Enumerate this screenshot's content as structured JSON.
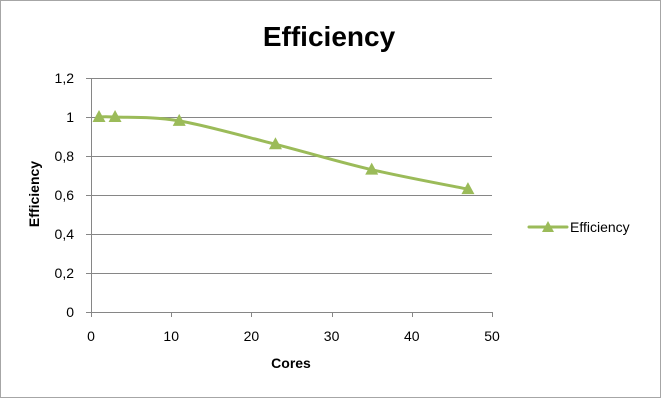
{
  "chart_data": {
    "type": "line",
    "title": "Efficiency",
    "xlabel": "Cores",
    "ylabel": "Efficiency",
    "xlim": [
      0,
      50
    ],
    "ylim": [
      0,
      1.2
    ],
    "x_ticks": [
      0,
      10,
      20,
      30,
      40,
      50
    ],
    "x_tick_labels": [
      "0",
      "10",
      "20",
      "30",
      "40",
      "50"
    ],
    "y_ticks": [
      0,
      0.2,
      0.4,
      0.6,
      0.8,
      1,
      1.2
    ],
    "y_tick_labels": [
      "0",
      "0,2",
      "0,4",
      "0,6",
      "0,8",
      "1",
      "1,2"
    ],
    "grid": "horizontal",
    "legend": "right",
    "smooth": true,
    "marker": "triangle",
    "series": [
      {
        "name": "Efficiency",
        "color": "#9bbb59",
        "x": [
          1,
          3,
          11,
          23,
          35,
          47
        ],
        "values": [
          1.0,
          1.0,
          0.98,
          0.86,
          0.73,
          0.63
        ]
      }
    ]
  }
}
